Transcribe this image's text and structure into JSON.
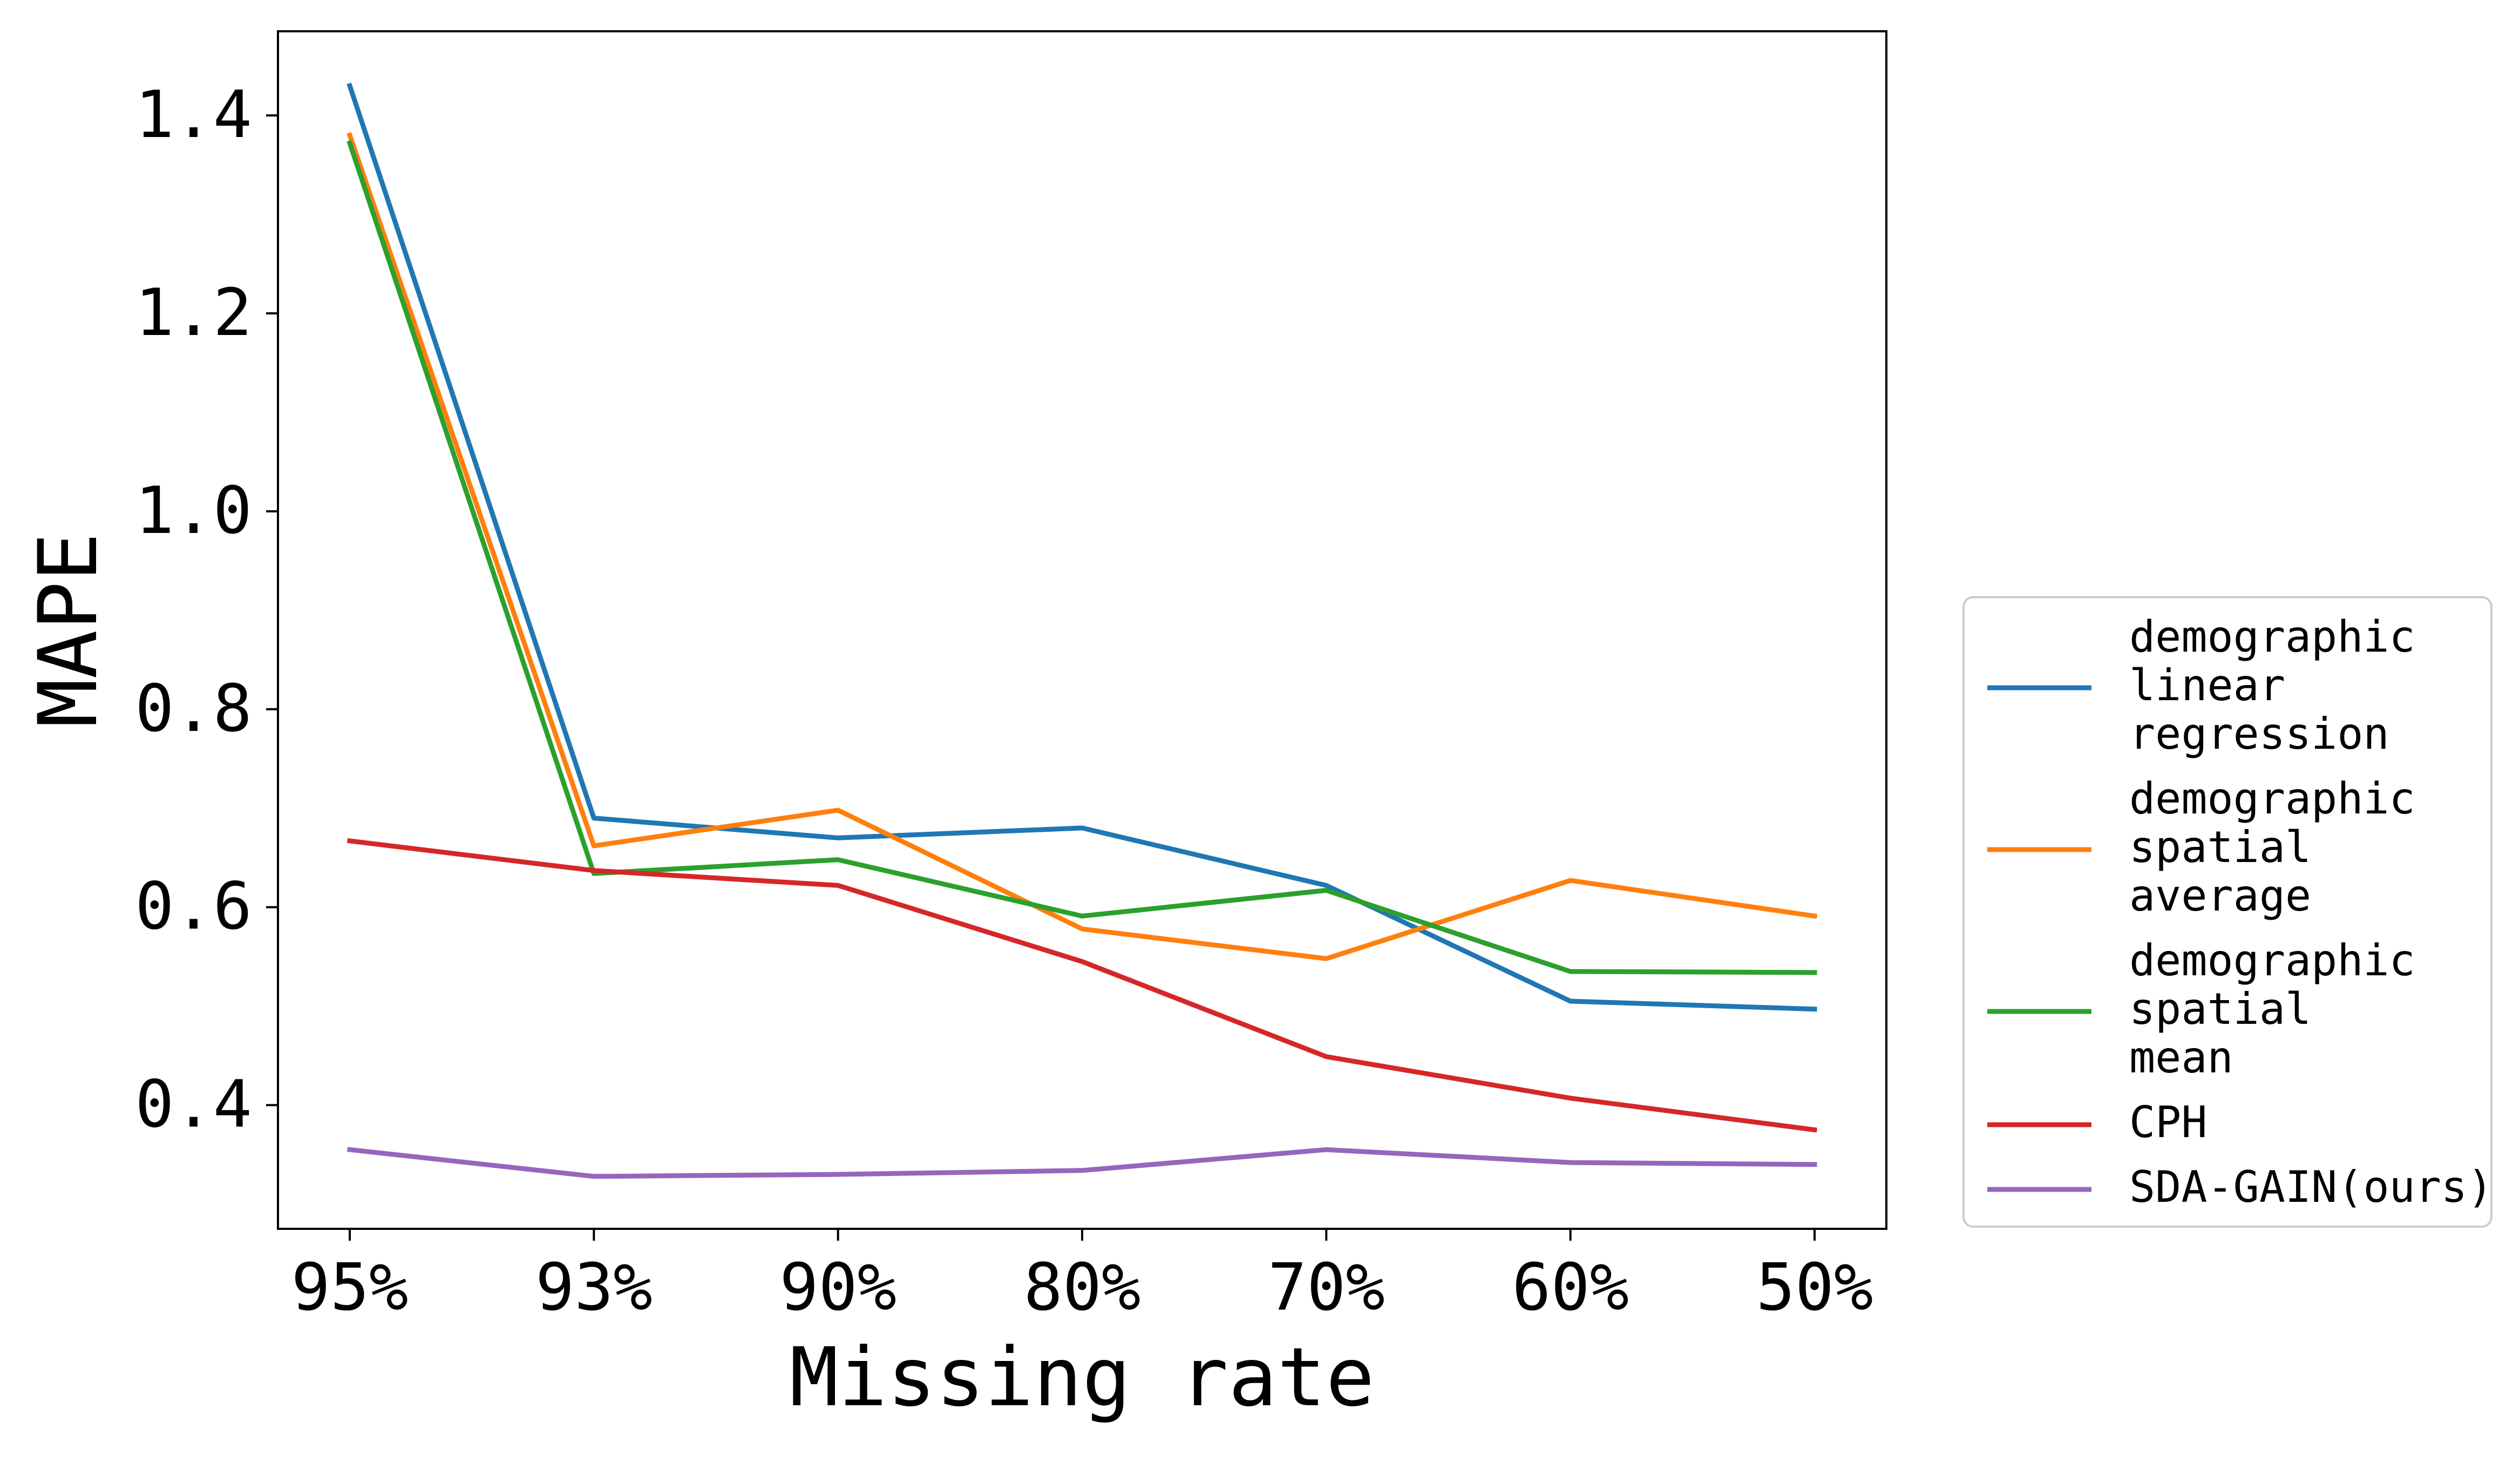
{
  "chart_data": {
    "type": "line",
    "xlabel": "Missing rate",
    "ylabel": "MAPE",
    "categories": [
      "95%",
      "93%",
      "90%",
      "80%",
      "70%",
      "60%",
      "50%"
    ],
    "ylim": [
      0.275,
      1.485
    ],
    "yticks": [
      "0.4",
      "0.6",
      "0.8",
      "1.0",
      "1.2",
      "1.4"
    ],
    "grid": false,
    "legend_position": "right, outside plot, lower",
    "series": [
      {
        "name": "demographic linear regression",
        "legend_lines": [
          "demographic",
          "linear",
          "regression"
        ],
        "color": "#1f77b4",
        "values": [
          1.43,
          0.69,
          0.67,
          0.68,
          0.622,
          0.505,
          0.497
        ]
      },
      {
        "name": "demographic spatial average",
        "legend_lines": [
          "demographic",
          "spatial",
          "average"
        ],
        "color": "#ff7f0e",
        "values": [
          1.38,
          0.662,
          0.698,
          0.578,
          0.548,
          0.627,
          0.591
        ]
      },
      {
        "name": "demographic spatial mean",
        "legend_lines": [
          "demographic",
          "spatial",
          "mean"
        ],
        "color": "#2ca02c",
        "values": [
          1.372,
          0.634,
          0.648,
          0.591,
          0.617,
          0.535,
          0.534
        ]
      },
      {
        "name": "CPH",
        "legend_lines": [
          "CPH"
        ],
        "color": "#d62728",
        "values": [
          0.667,
          0.637,
          0.622,
          0.545,
          0.449,
          0.407,
          0.375
        ]
      },
      {
        "name": "SDA-GAIN(ours)",
        "legend_lines": [
          "SDA-GAIN(ours)"
        ],
        "color": "#9467bd",
        "values": [
          0.355,
          0.328,
          0.33,
          0.334,
          0.355,
          0.342,
          0.34
        ]
      }
    ]
  }
}
